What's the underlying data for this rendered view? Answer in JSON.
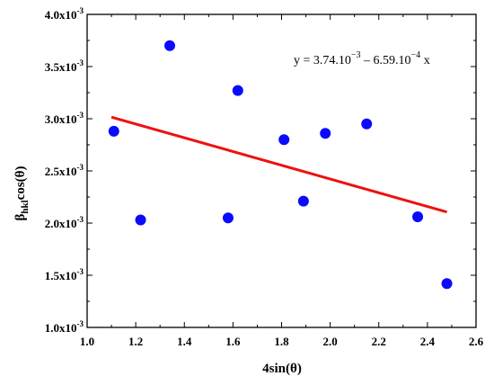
{
  "chart_data": {
    "type": "scatter",
    "xlabel": "4sin(θ)",
    "ylabel_main": "β",
    "ylabel_sub": "hkl",
    "ylabel_rest": "cos(θ)",
    "xlim": [
      1.0,
      2.6
    ],
    "ylim": [
      0.001,
      0.004
    ],
    "x_ticks": [
      1.0,
      1.2,
      1.4,
      1.6,
      1.8,
      2.0,
      2.2,
      2.4,
      2.6
    ],
    "x_tick_labels": [
      "1.0",
      "1.2",
      "1.4",
      "1.6",
      "1.8",
      "2.0",
      "2.2",
      "2.4",
      "2.6"
    ],
    "y_ticks": [
      0.001,
      0.0015,
      0.002,
      0.0025,
      0.003,
      0.0035,
      0.004
    ],
    "y_tick_mantissas": [
      "1.0x10",
      "1.5x10",
      "2.0x10",
      "2.5x10",
      "3.0x10",
      "3.5x10",
      "4.0x10"
    ],
    "y_tick_exponent": "-3",
    "grid": false,
    "series": [
      {
        "marker_color": "#0a0aff",
        "x": [
          1.11,
          1.22,
          1.34,
          1.58,
          1.62,
          1.81,
          1.89,
          1.98,
          2.15,
          2.36,
          2.48
        ],
        "y": [
          0.00288,
          0.00203,
          0.0037,
          0.00205,
          0.00327,
          0.0028,
          0.00221,
          0.00286,
          0.00295,
          0.00206,
          0.00142
        ]
      }
    ],
    "fit_line": {
      "color": "#ee1111",
      "x_range": [
        1.1,
        2.48
      ],
      "intercept": 0.00374,
      "slope": -0.000659
    },
    "equation": {
      "prefix": "y = 3.74.10",
      "exp1": "−3",
      "middle": " – 6.59.10",
      "exp2": "−4",
      "suffix": " x"
    }
  }
}
